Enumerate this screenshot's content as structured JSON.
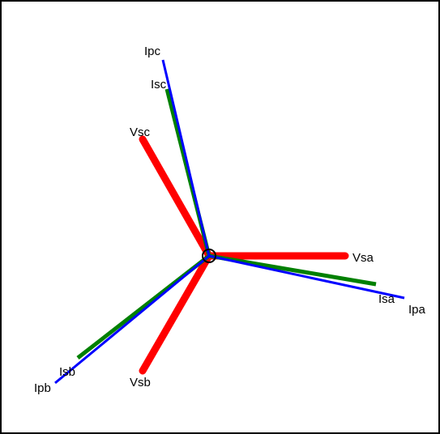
{
  "diagram": {
    "colors": {
      "voltage": "#ff0000",
      "secondary_current": "#008000",
      "primary_current": "#0000ff",
      "origin": "#000000",
      "background": "#ffffff"
    },
    "phasors": [
      {
        "id": "vsa",
        "label": "Vsa",
        "kind": "voltage"
      },
      {
        "id": "vsb",
        "label": "Vsb",
        "kind": "voltage"
      },
      {
        "id": "vsc",
        "label": "Vsc",
        "kind": "voltage"
      },
      {
        "id": "isa",
        "label": "Isa",
        "kind": "secondary_current"
      },
      {
        "id": "isb",
        "label": "Isb",
        "kind": "secondary_current"
      },
      {
        "id": "isc",
        "label": "Isc",
        "kind": "secondary_current"
      },
      {
        "id": "ipa",
        "label": "Ipa",
        "kind": "primary_current"
      },
      {
        "id": "ipb",
        "label": "Ipb",
        "kind": "primary_current"
      },
      {
        "id": "ipc",
        "label": "Ipc",
        "kind": "primary_current"
      }
    ]
  }
}
